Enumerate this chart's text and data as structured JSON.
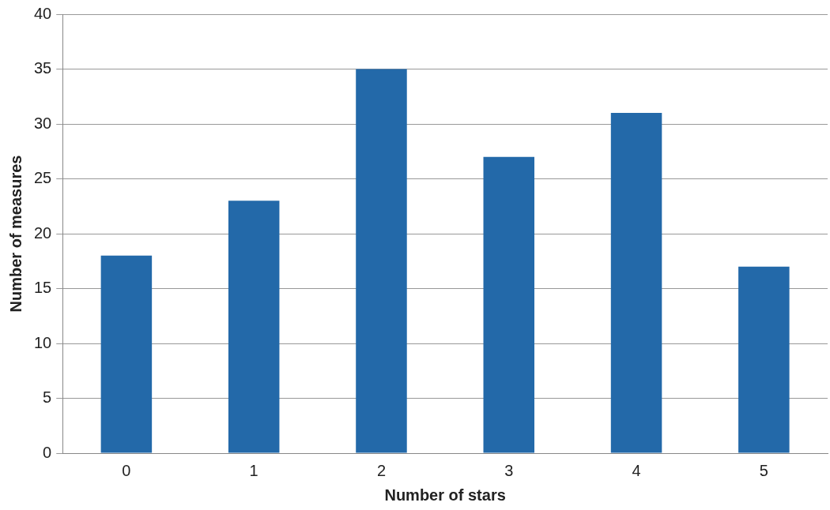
{
  "chart_data": {
    "type": "bar",
    "xlabel": "Number of stars",
    "ylabel": "Number of measures",
    "categories": [
      "0",
      "1",
      "2",
      "3",
      "4",
      "5"
    ],
    "values": [
      18,
      23,
      35,
      27,
      31,
      17
    ],
    "color": "#2369a9",
    "ylim": [
      0,
      40
    ],
    "yticks": [
      0,
      5,
      10,
      15,
      20,
      25,
      30,
      35,
      40
    ],
    "grid": "y",
    "legend": false
  }
}
